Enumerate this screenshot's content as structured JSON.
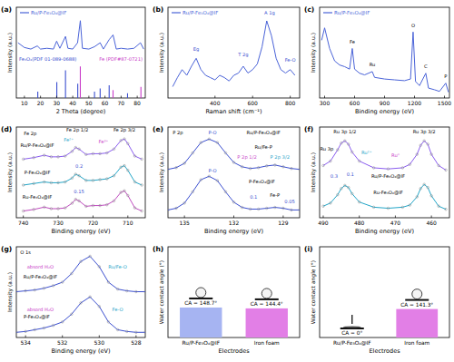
{
  "chart_data": [
    {
      "type": "line",
      "title": "(a)",
      "x_label": "2 Theta (degree)",
      "y_label": "Intensity (a.u.)",
      "xlim": [
        5,
        85
      ],
      "xticks": [
        10,
        20,
        30,
        40,
        50,
        60,
        70,
        80
      ],
      "ylim": [
        0,
        115
      ],
      "tick_labels": "x",
      "legend": "upper left",
      "series": [
        {
          "name": "Ru/P-Fe₃O₄@IF",
          "type": "line",
          "color": "#4a63d8",
          "x": [
            6,
            10,
            14,
            18,
            20,
            24,
            28,
            30,
            32,
            35.5,
            37,
            40,
            43,
            44.7,
            46,
            50,
            53.5,
            57,
            59,
            62.6,
            65,
            67,
            70,
            74,
            78,
            82,
            84
          ],
          "values": [
            70,
            64,
            62,
            66,
            62,
            63,
            62,
            72,
            63,
            78,
            63,
            62,
            70,
            98,
            63,
            62,
            65,
            70,
            62,
            74,
            80,
            62,
            63,
            62,
            63,
            70,
            62
          ]
        },
        {
          "name": "Fe₃O₄(PDF 01-089-0688)",
          "type": "stick",
          "color": "#3b4fd0",
          "x": [
            18.3,
            30.1,
            35.5,
            43.1,
            53.5,
            57,
            62.6,
            74
          ],
          "values": [
            8,
            20,
            35,
            18,
            8,
            12,
            16,
            6
          ]
        },
        {
          "name": "Fe (PDF#87-0721)",
          "type": "stick",
          "color": "#c83cc8",
          "x": [
            44.7,
            65,
            82.3
          ],
          "values": [
            40,
            10,
            14
          ]
        }
      ]
    },
    {
      "type": "line",
      "title": "(b)",
      "x_label": "Raman shift (cm⁻¹)",
      "y_label": "Intensity (a.u.)",
      "xlim": [
        150,
        850
      ],
      "xticks": [
        400,
        600,
        800
      ],
      "ylim": [
        20,
        100
      ],
      "tick_labels": "x",
      "legend": "upper left",
      "series": [
        {
          "name": "Ru/P-Fe₃O₄@IF",
          "type": "line",
          "color": "#4a63d8",
          "x": [
            175,
            200,
            225,
            250,
            275,
            300,
            325,
            350,
            375,
            400,
            425,
            450,
            475,
            500,
            525,
            550,
            575,
            600,
            625,
            650,
            675,
            700,
            725,
            750,
            775,
            800,
            825
          ],
          "values": [
            30,
            38,
            45,
            40,
            48,
            55,
            45,
            40,
            38,
            36,
            40,
            38,
            35,
            40,
            42,
            48,
            42,
            45,
            50,
            65,
            88,
            75,
            55,
            45,
            42,
            45,
            40
          ]
        }
      ],
      "annotations": [
        {
          "text": "Eg",
          "x": 300,
          "y": 62,
          "color": "#3b4fd0"
        },
        {
          "text": "T 2g",
          "x": 550,
          "y": 57,
          "color": "#3b4fd0"
        },
        {
          "text": "A 1g",
          "x": 690,
          "y": 94,
          "color": "#3b4fd0"
        },
        {
          "text": "Fe-O",
          "x": 800,
          "y": 52,
          "color": "#3b4fd0"
        }
      ]
    },
    {
      "type": "line",
      "title": "(c)",
      "x_label": "Binding energy (eV)",
      "y_label": "Intensity (a.u.)",
      "xlim": [
        250,
        1550
      ],
      "xticks": [
        300,
        600,
        900,
        1200,
        1500
      ],
      "ylim": [
        10,
        120
      ],
      "tick_labels": "x",
      "legend": "upper left",
      "series": [
        {
          "name": "Ru/P-Fe₃O₄@IF",
          "type": "line",
          "color": "#4a63d8",
          "x": [
            270,
            300,
            350,
            400,
            450,
            500,
            550,
            577,
            600,
            650,
            700,
            777,
            800,
            900,
            1000,
            1100,
            1160,
            1186,
            1210,
            1250,
            1313,
            1340,
            1400,
            1450,
            1513,
            1540
          ],
          "values": [
            80,
            95,
            70,
            55,
            50,
            48,
            45,
            70,
            45,
            40,
            38,
            42,
            35,
            33,
            32,
            31,
            33,
            90,
            30,
            25,
            40,
            22,
            20,
            18,
            28,
            17
          ]
        }
      ],
      "annotations": [
        {
          "text": "Fe",
          "x": 577,
          "y": 76
        },
        {
          "text": "Ru",
          "x": 777,
          "y": 48
        },
        {
          "text": "O",
          "x": 1186,
          "y": 96
        },
        {
          "text": "C",
          "x": 1313,
          "y": 46
        },
        {
          "text": "P",
          "x": 1513,
          "y": 34
        }
      ]
    },
    {
      "type": "line",
      "title": "(d)",
      "x_label": "Binding energy (eV)",
      "y_label": "Intensity (a.u.)",
      "xlim": [
        742,
        705
      ],
      "xticks": [
        740,
        730,
        720,
        710
      ],
      "ylim": [
        0,
        105
      ],
      "tick_labels": "x",
      "series": [
        {
          "type": "line",
          "marker": "circle",
          "color": "#8a5cf0",
          "x": [
            740,
            737,
            734,
            732,
            730,
            728,
            726,
            725,
            724,
            722,
            720,
            718,
            716,
            714,
            712,
            711,
            710,
            708,
            706
          ],
          "values": [
            67.8,
            69.6,
            72.3,
            70.5,
            70.5,
            71.4,
            76.8,
            81.3,
            79.5,
            73.2,
            74.1,
            74.1,
            75,
            79.5,
            89.4,
            91.2,
            85.8,
            71.4,
            67.8
          ]
        },
        {
          "type": "line",
          "marker": "circle",
          "color": "#22a6c8",
          "x": [
            740,
            737,
            734,
            732,
            730,
            728,
            726,
            725,
            724,
            722,
            720,
            718,
            716,
            714,
            712,
            711,
            710,
            708,
            706
          ],
          "values": [
            37.8,
            39.6,
            41.4,
            40.5,
            40.5,
            41.4,
            45.9,
            50.4,
            48.6,
            43.2,
            43.2,
            44.1,
            45,
            48.6,
            58.5,
            60.3,
            54.9,
            41.4,
            37.8
          ]
        },
        {
          "type": "line",
          "marker": "circle",
          "color": "#c04ac0",
          "x": [
            740,
            737,
            734,
            732,
            730,
            728,
            726,
            725,
            724,
            722,
            720,
            718,
            716,
            714,
            712,
            711,
            710,
            708,
            706
          ],
          "values": [
            7.8,
            9.6,
            12.3,
            10.5,
            10.5,
            11.4,
            16.8,
            21.3,
            19.5,
            13.2,
            14.1,
            14.1,
            15,
            19.5,
            29.4,
            31.2,
            25.8,
            11.4,
            7.8
          ]
        }
      ],
      "annotations": [
        {
          "text": "Fe 2p",
          "x": 738,
          "y": 96
        },
        {
          "text": "Fe 2p 1/2",
          "x": 724.5,
          "y": 100
        },
        {
          "text": "Fe 2p 3/2",
          "x": 711,
          "y": 100
        },
        {
          "text": "Fe²⁺",
          "x": 727,
          "y": 88,
          "color": "#1fa5c9"
        },
        {
          "text": "Fe³⁺",
          "x": 717,
          "y": 86,
          "color": "#c83cc8"
        },
        {
          "text": "Ru/P-Fe₃O₄@IF",
          "x": 736,
          "y": 82
        },
        {
          "text": "P-Fe₃O₄@IF",
          "x": 736,
          "y": 50
        },
        {
          "text": "Ru-Fe₃O₄@IF",
          "x": 736,
          "y": 22
        },
        {
          "text": "0.2",
          "x": 724,
          "y": 58,
          "color": "#3b4fd0"
        },
        {
          "text": "0.15",
          "x": 724,
          "y": 28,
          "color": "#3b4fd0"
        }
      ]
    },
    {
      "type": "line",
      "title": "(e)",
      "x_label": "Binding energy (eV)",
      "y_label": "Intensity (a.u.)",
      "xlim": [
        136,
        128
      ],
      "xticks": [
        135,
        132,
        129
      ],
      "ylim": [
        0,
        105
      ],
      "tick_labels": "x",
      "series": [
        {
          "type": "line",
          "marker": "circle",
          "color": "#3b4fd0",
          "x": [
            136,
            135.5,
            135,
            134.5,
            134,
            133.5,
            133,
            132.5,
            132,
            131.5,
            131,
            130.5,
            130,
            129.5,
            129,
            128.5,
            128
          ],
          "values": [
            56,
            58,
            63,
            75,
            87,
            91,
            87,
            75,
            64,
            59,
            57,
            58,
            60,
            61,
            59,
            57,
            56
          ]
        },
        {
          "type": "line",
          "marker": "circle",
          "color": "#3b4fd0",
          "x": [
            136,
            135.5,
            135,
            134.5,
            134,
            133.5,
            133,
            132.5,
            132,
            131.5,
            131,
            130.5,
            130,
            129.5,
            129,
            128.5,
            128
          ],
          "values": [
            9,
            11,
            17,
            30,
            44,
            48,
            43,
            30,
            18,
            12,
            10,
            10,
            11,
            12,
            11,
            9,
            9
          ]
        }
      ],
      "annotations": [
        {
          "text": "P 2p",
          "x": 135.4,
          "y": 97
        },
        {
          "text": "P-O",
          "x": 133.3,
          "y": 97,
          "color": "#3b4fd0"
        },
        {
          "text": "Ru/P-Fe₃O₄@IF",
          "x": 130.2,
          "y": 97
        },
        {
          "text": "Ru/Fe-P",
          "x": 130.2,
          "y": 80
        },
        {
          "text": "P 2p 1/2",
          "x": 131.2,
          "y": 68,
          "color": "#c83cc8"
        },
        {
          "text": "P 2p 3/2",
          "x": 129.2,
          "y": 68,
          "color": "#1fa5c9"
        },
        {
          "text": "P-O",
          "x": 133.3,
          "y": 53,
          "color": "#3b4fd0"
        },
        {
          "text": "P-Fe₃O₄@IF",
          "x": 130.3,
          "y": 40
        },
        {
          "text": "Fe-P",
          "x": 129.5,
          "y": 24
        },
        {
          "text": "0.1",
          "x": 130.8,
          "y": 22,
          "color": "#3b4fd0"
        },
        {
          "text": "0.05",
          "x": 128.6,
          "y": 17,
          "color": "#3b4fd0"
        }
      ]
    },
    {
      "type": "line",
      "title": "(f)",
      "x_label": "Binding energy (eV)",
      "y_label": "Intensity (a.u.)",
      "xlim": [
        491,
        455
      ],
      "xticks": [
        490,
        480,
        470,
        460
      ],
      "ylim": [
        0,
        105
      ],
      "tick_labels": "x",
      "series": [
        {
          "type": "line",
          "marker": "circle",
          "color": "#8a5cf0",
          "x": [
            490,
            488,
            486,
            485,
            484,
            483,
            482,
            480,
            476,
            472,
            468,
            466,
            464,
            463,
            462,
            461,
            460,
            458,
            456
          ],
          "values": [
            60.4,
            65.6,
            78.6,
            86.4,
            89,
            85.1,
            76,
            65.6,
            57.8,
            56.5,
            57.8,
            61.7,
            73.4,
            83.8,
            89,
            85.1,
            73.4,
            60.4,
            55.2
          ]
        },
        {
          "type": "line",
          "marker": "circle",
          "color": "#22a6c8",
          "x": [
            490,
            488,
            486,
            485,
            484,
            483,
            482,
            480,
            476,
            472,
            468,
            466,
            464,
            463,
            462,
            461,
            460,
            458,
            456
          ],
          "values": [
            13.4,
            17,
            26.6,
            33.8,
            37.4,
            35,
            27.8,
            18.2,
            12.2,
            11,
            12.2,
            14.6,
            24.2,
            33.8,
            38.6,
            35,
            25.4,
            13.4,
            9.8
          ]
        }
      ],
      "annotations": [
        {
          "text": "Ru 3p",
          "x": 489,
          "y": 78
        },
        {
          "text": "Ru 3p 1/2",
          "x": 484,
          "y": 98
        },
        {
          "text": "Ru 3p 3/2",
          "x": 462,
          "y": 98
        },
        {
          "text": "Ru²⁺",
          "x": 478,
          "y": 74,
          "color": "#1fa5c9"
        },
        {
          "text": "Ru⁰",
          "x": 470,
          "y": 70,
          "color": "#c83cc8"
        },
        {
          "text": "Ru/P-Fe₃O₄@IF",
          "x": 472,
          "y": 46
        },
        {
          "text": "Ru-Fe₃O₄@IF",
          "x": 472,
          "y": 27
        },
        {
          "text": "0.3",
          "x": 487,
          "y": 46,
          "color": "#3b4fd0"
        },
        {
          "text": "0.1",
          "x": 482.5,
          "y": 48,
          "color": "#3b4fd0"
        }
      ]
    },
    {
      "type": "line",
      "title": "(g)",
      "x_label": "Binding energy (eV)",
      "y_label": "Intensity (a.u.)",
      "xlim": [
        534.5,
        527.5
      ],
      "xticks": [
        534,
        532,
        530,
        528
      ],
      "ylim": [
        0,
        105
      ],
      "tick_labels": "x",
      "series": [
        {
          "type": "line",
          "marker": "circle",
          "color": "#3b4fd0",
          "x": [
            534.5,
            534,
            533.5,
            533,
            532.5,
            532,
            531.5,
            531,
            530.5,
            530,
            529.5,
            529,
            528.5,
            528,
            527.5
          ],
          "values": [
            53,
            54,
            55,
            57,
            60,
            64,
            74,
            88,
            94,
            82,
            64,
            56,
            54,
            53,
            53
          ]
        },
        {
          "type": "line",
          "marker": "circle",
          "color": "#3b4fd0",
          "x": [
            534.5,
            534,
            533.5,
            533,
            532.5,
            532,
            531.5,
            531,
            530.5,
            530,
            529.5,
            529,
            528.5,
            528,
            527.5
          ],
          "values": [
            6,
            7,
            9,
            11,
            14,
            18,
            27,
            40,
            47,
            36,
            18,
            9,
            7,
            6,
            6
          ]
        }
      ],
      "annotations": [
        {
          "text": "O 1s",
          "x": 534,
          "y": 97
        },
        {
          "text": "absord H₂O",
          "x": 533.2,
          "y": 80,
          "color": "#c83cc8"
        },
        {
          "text": "Ru/P-Fe₃O₄@IF",
          "x": 533.2,
          "y": 68
        },
        {
          "text": "Ru/Fe-O",
          "x": 529,
          "y": 80,
          "color": "#1fa5c9"
        },
        {
          "text": "absord H₂O",
          "x": 533.2,
          "y": 30,
          "color": "#c83cc8"
        },
        {
          "text": "P-Fe₃O₄@IF",
          "x": 533.4,
          "y": 22
        },
        {
          "text": "Fe-O",
          "x": 529,
          "y": 30,
          "color": "#1fa5c9"
        }
      ]
    },
    {
      "type": "bar",
      "title": "(h)",
      "x_label": "Electrodes",
      "y_label": "Water contact angle (°)",
      "categories": [
        "Ru/P-Fe₃O₄@IF",
        "Iron foam"
      ],
      "values": [
        148.7,
        144.4
      ],
      "value_labels": [
        "CA = 148.7°",
        "CA = 144.4°"
      ],
      "data_labels": true,
      "colors": [
        "#a6b4f2",
        "#e27fe6"
      ],
      "ylim": [
        0,
        450
      ],
      "tick_labels": "x"
    },
    {
      "type": "bar",
      "title": "(i)",
      "x_label": "Electrodes",
      "y_label": "Water contact angle (°)",
      "categories": [
        "Ru/P-Fe₃O₄@IF",
        "Iron foam"
      ],
      "values": [
        0,
        141.3
      ],
      "value_labels": [
        "CA = 0°",
        "CA = 141.3°"
      ],
      "data_labels": true,
      "colors": [
        "#a6b4f2",
        "#e27fe6"
      ],
      "ylim": [
        0,
        450
      ],
      "tick_labels": "x"
    }
  ]
}
